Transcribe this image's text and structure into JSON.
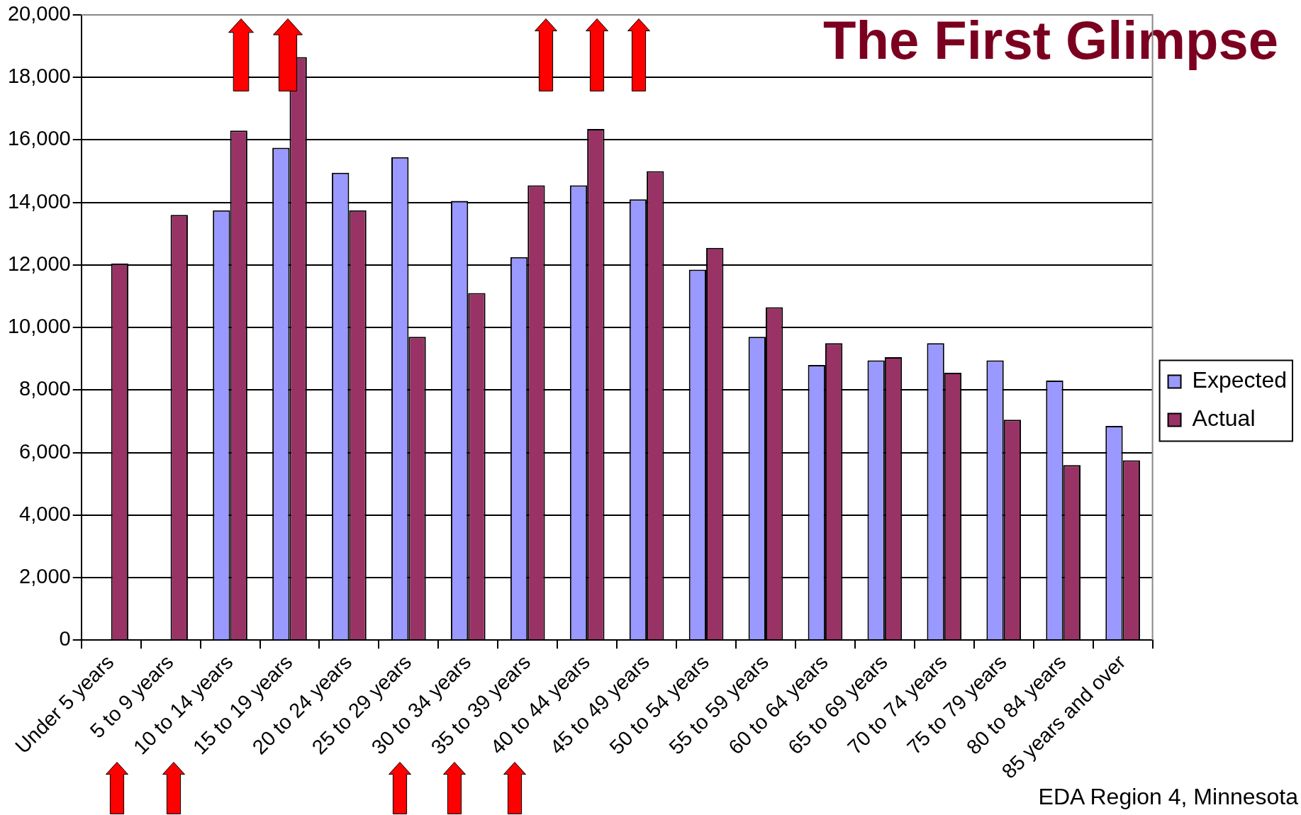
{
  "chart_data": {
    "type": "bar",
    "title": "The First Glimpse",
    "annotations": [
      "EDA Region 4, Minnesota"
    ],
    "categories": [
      "Under 5 years",
      "5 to 9 years",
      "10 to 14 years",
      "15 to 19 years",
      "20 to 24 years",
      "25 to 29 years",
      "30 to 34 years",
      "35 to 39 years",
      "40 to 44 years",
      "45 to 49 years",
      "50 to 54 years",
      "55 to 59 years",
      "60 to 64 years",
      "65 to 69 years",
      "70 to 74 years",
      "75 to 79 years",
      "80 to 84 years",
      "85 years and over"
    ],
    "series": [
      {
        "name": "Expected",
        "color": "#9999ff",
        "values": [
          null,
          null,
          13750,
          15750,
          14950,
          15450,
          14050,
          12250,
          14550,
          14100,
          11850,
          9700,
          8800,
          8950,
          9500,
          8950,
          8300,
          6850
        ]
      },
      {
        "name": "Actual",
        "color": "#993366",
        "values": [
          12050,
          13600,
          16300,
          18650,
          13750,
          9700,
          11100,
          14550,
          16350,
          15000,
          12550,
          10650,
          9500,
          9050,
          8550,
          7050,
          5600,
          5750
        ]
      }
    ],
    "ylim": [
      0,
      20000
    ],
    "yticks": [
      0,
      {
        "value": 2000,
        "label": "2,000"
      },
      {
        "value": 4000,
        "label": "4,000"
      },
      {
        "value": 6000,
        "label": "6,000"
      },
      {
        "value": 8000,
        "label": "8,000"
      },
      {
        "value": 10000,
        "label": "10,000"
      },
      {
        "value": 12000,
        "label": "12,000"
      },
      {
        "value": 14000,
        "label": "14,000"
      },
      {
        "value": 16000,
        "label": "16,000"
      },
      {
        "value": 18000,
        "label": "18,000"
      },
      {
        "value": 20000,
        "label": "20,000"
      }
    ],
    "grid": "y",
    "legend": "right"
  }
}
